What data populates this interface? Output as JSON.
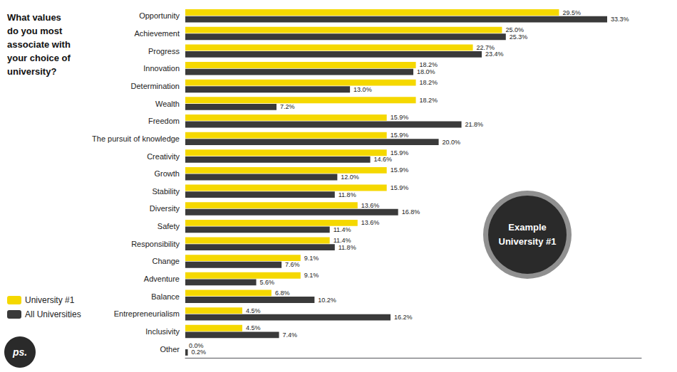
{
  "chart_data": {
    "type": "bar",
    "orientation": "horizontal",
    "title": "What values\ndo you most\nassociate with\nyour choice of\nuniversity?",
    "categories": [
      "Opportunity",
      "Achievement",
      "Progress",
      "Innovation",
      "Determination",
      "Wealth",
      "Freedom",
      "The pursuit of knowledge",
      "Creativity",
      "Growth",
      "Stability",
      "Diversity",
      "Safety",
      "Responsibility",
      "Change",
      "Adventure",
      "Balance",
      "Entrepreneurialism",
      "Inclusivity",
      "Other"
    ],
    "series": [
      {
        "name": "University #1",
        "color": "#f5d800",
        "values": [
          29.5,
          25.0,
          22.7,
          18.2,
          18.2,
          18.2,
          15.9,
          15.9,
          15.9,
          15.9,
          15.9,
          13.6,
          13.6,
          11.4,
          9.1,
          9.1,
          6.8,
          4.5,
          4.5,
          0.0
        ],
        "value_labels": [
          "29.5%",
          "25.0%",
          "22.7%",
          "18.2%",
          "18.2%",
          "18.2%",
          "15.9%",
          "15.9%",
          "15.9%",
          "15.9%",
          "15.9%",
          "13.6%",
          "13.6%",
          "11.4%",
          "9.1%",
          "9.1%",
          "6.8%",
          "4.5%",
          "4.5%",
          "0.0%"
        ]
      },
      {
        "name": "All Universities",
        "color": "#3a3a3a",
        "values": [
          33.3,
          25.3,
          23.4,
          18.0,
          13.0,
          7.2,
          21.8,
          20.0,
          14.6,
          12.0,
          11.8,
          16.8,
          11.4,
          11.8,
          7.6,
          5.6,
          10.2,
          16.2,
          7.4,
          0.2
        ],
        "value_labels": [
          "33.3%",
          "25.3%",
          "23.4%",
          "18.0%",
          "13.0%",
          "7.2%",
          "21.8%",
          "20.0%",
          "14.6%",
          "12.0%",
          "11.8%",
          "16.8%",
          "11.4%",
          "11.8%",
          "7.6%",
          "5.6%",
          "10.2%",
          "16.2%",
          "7.4%",
          "0.2%"
        ]
      }
    ],
    "xlim": [
      0,
      36
    ],
    "tick_labels": "y",
    "grid": false,
    "legend": "bottom-left",
    "data_labels": true,
    "annotations": [
      "Example\nUniversity #1",
      "ps."
    ]
  }
}
